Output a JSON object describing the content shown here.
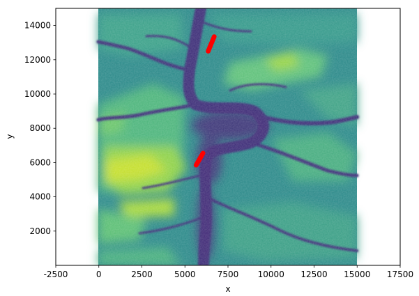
{
  "chart_data": {
    "type": "heatmap",
    "subtype": "terrain raster with scatter overlay",
    "xlabel": "x",
    "ylabel": "y",
    "xlim": [
      -2500,
      17500
    ],
    "ylim": [
      0,
      15000
    ],
    "xticks": [
      -2500,
      0,
      2500,
      5000,
      7500,
      10000,
      12500,
      15000,
      17500
    ],
    "yticks": [
      2000,
      4000,
      6000,
      8000,
      10000,
      12000,
      14000
    ],
    "raster_extent": {
      "x": [
        0,
        15000
      ],
      "y": [
        0,
        15000
      ]
    },
    "colormap": "viridis",
    "overlay_color": "#ff0000",
    "overlay_segments": [
      {
        "start": [
          6350,
          12500
        ],
        "end": [
          6700,
          13350
        ]
      },
      {
        "start": [
          5650,
          5850
        ],
        "end": [
          6050,
          6550
        ]
      }
    ]
  }
}
